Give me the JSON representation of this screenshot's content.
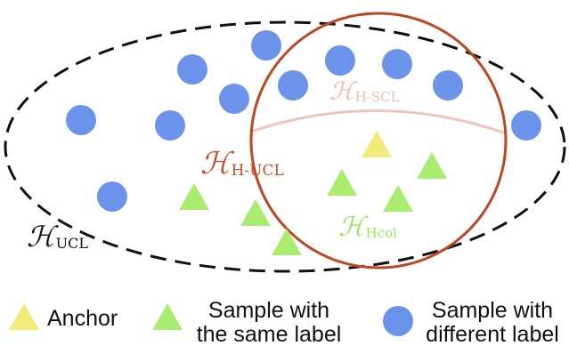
{
  "colors": {
    "circle": "#6b93ea",
    "anchor": "#f3ea79",
    "positive": "#a9ec70",
    "outer_dash": "#111111",
    "ring": "#bc4722",
    "arc": "#f1c2b8",
    "h_ucl": "#111111",
    "h_huc": "#c5502b",
    "h_hscl": "#efbcb2",
    "h_hcol": "#98e85c"
  },
  "labels": {
    "h_ucl": {
      "main": "ℋ",
      "sub": "UCL"
    },
    "h_hucl": {
      "main": "ℋ",
      "sub": "H-UCL"
    },
    "h_hscl": {
      "main": "ℋ",
      "sub": "H-SCL"
    },
    "h_hcol": {
      "main": "ℋ",
      "sub": "Hcol"
    }
  },
  "legend": {
    "anchor": "Anchor",
    "same_label_line1": "Sample with",
    "same_label_line2": "the same label",
    "diff_label_line1": "Sample with",
    "diff_label_line2": "different label"
  },
  "icons": {
    "anchor": "yellow-triangle-icon",
    "same_label": "green-triangle-icon",
    "diff_label": "blue-circle-icon"
  }
}
